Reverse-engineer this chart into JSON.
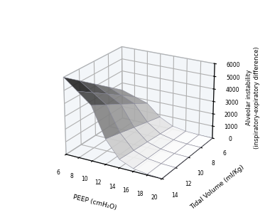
{
  "peep_values": [
    6,
    8,
    10,
    12,
    14,
    16,
    18,
    20
  ],
  "tv_values": [
    6,
    8,
    10,
    12,
    14
  ],
  "xlabel": "PEEP (cmH₂O)",
  "ylabel": "Tidal Volume (ml/Kg)",
  "zlabel": "Alveolar instability\n(inspiratory-expiratory difference)",
  "zlim": [
    0,
    6000
  ],
  "zticks": [
    0,
    1000,
    2000,
    3000,
    4000,
    5000,
    6000
  ],
  "peep_ticks": [
    6,
    8,
    10,
    12,
    14,
    16,
    18,
    20
  ],
  "tv_ticks": [
    6,
    8,
    10,
    12,
    14
  ],
  "elev": 22,
  "azim": -60,
  "pane_color": "#e8eff5",
  "pane_edge_color": "#aabbcc",
  "grid_color": "#c0ccd8"
}
